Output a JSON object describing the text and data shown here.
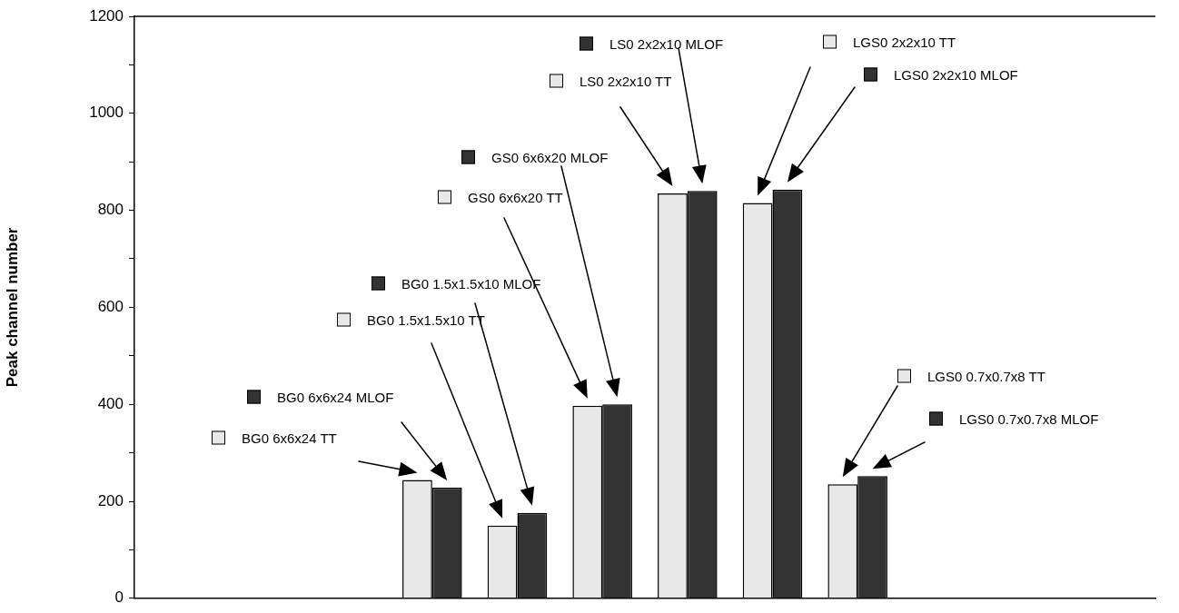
{
  "chart_data": {
    "type": "bar",
    "ylabel": "Peak channel number",
    "categories": [
      null,
      null,
      null,
      null,
      null,
      null,
      null,
      null,
      null,
      null,
      null,
      null
    ],
    "series": [
      {
        "color": "#e8e8e8",
        "values": [
          null,
          null,
          null,
          244,
          150,
          397,
          835,
          815,
          235,
          null,
          null,
          null
        ]
      },
      {
        "color": "#333333",
        "values": [
          null,
          null,
          null,
          228,
          176,
          400,
          840,
          843,
          252,
          null,
          null,
          null
        ]
      }
    ],
    "ylim": [
      0,
      1200
    ],
    "yticks": [
      0,
      {
        "value": 100,
        "label": null
      },
      200,
      {
        "value": 300,
        "label": null
      },
      400,
      {
        "value": 500,
        "label": null
      },
      600,
      {
        "value": 700,
        "label": null
      },
      800,
      {
        "value": 900,
        "label": null
      },
      1000,
      {
        "value": 1100,
        "label": null
      },
      1200
    ],
    "grid": false,
    "legend": false,
    "annotations": [
      "BG0 6x6x24 TT",
      "BG0 6x6x24 MLOF",
      "BG0 1.5x1.5x10 TT",
      "BG0 1.5x1.5x10 MLOF",
      "GS0 6x6x20 TT",
      "GS0 6x6x20 MLOF",
      "LS0 2x2x10 TT",
      "LS0 2x2x10 MLOF",
      "LGS0 2x2x10 TT",
      "LGS0 2x2x10 MLOF",
      "LGS0 0.7x0.7x8 TT",
      "LGS0 0.7x0.7x8 MLOF"
    ]
  }
}
